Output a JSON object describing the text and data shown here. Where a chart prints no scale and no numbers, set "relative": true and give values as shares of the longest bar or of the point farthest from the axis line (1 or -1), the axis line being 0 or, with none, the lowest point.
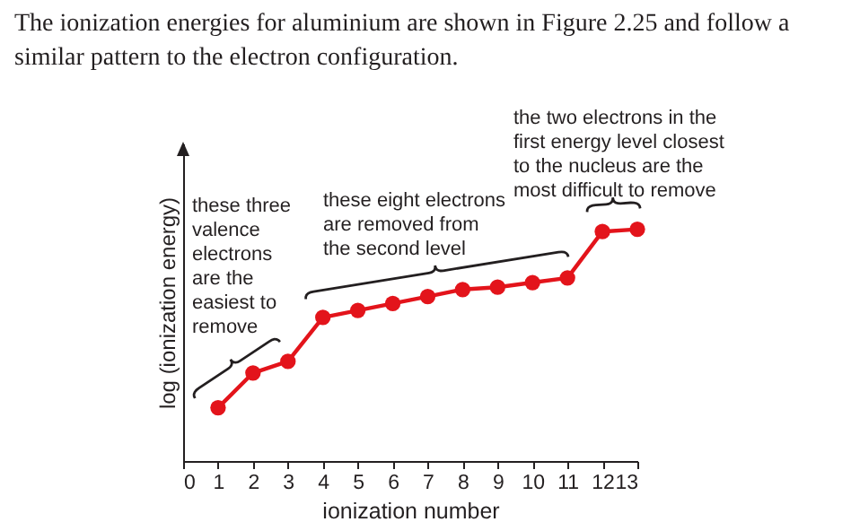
{
  "chart_data": {
    "type": "line",
    "title": "The ionization energies for aluminium are shown in Figure 2.25 and follow a similar pattern to the electron configuration.",
    "xlabel": "ionization number",
    "ylabel": "log (ionization energy)",
    "relative": true,
    "x": [
      1,
      2,
      3,
      4,
      5,
      6,
      7,
      8,
      9,
      10,
      11,
      12,
      13
    ],
    "xlim": [
      0,
      13
    ],
    "xticks": [
      0,
      1,
      2,
      3,
      4,
      5,
      6,
      7,
      8,
      9,
      10,
      11,
      12,
      13
    ],
    "series": [
      {
        "color": "#e3141b",
        "values": [
          0.23,
          0.38,
          0.43,
          0.62,
          0.65,
          0.68,
          0.71,
          0.74,
          0.75,
          0.77,
          0.79,
          0.99,
          1
        ]
      }
    ],
    "marker": "circle",
    "grid": false,
    "annotations": [
      "these three\nvalence\nelectrons\nare the\neasiest to\nremove",
      "these eight electrons\nare removed from\nthe second level",
      "the two electrons in the\nfirst energy level closest\nto the nucleus are the\nmost difficult to remove"
    ]
  }
}
